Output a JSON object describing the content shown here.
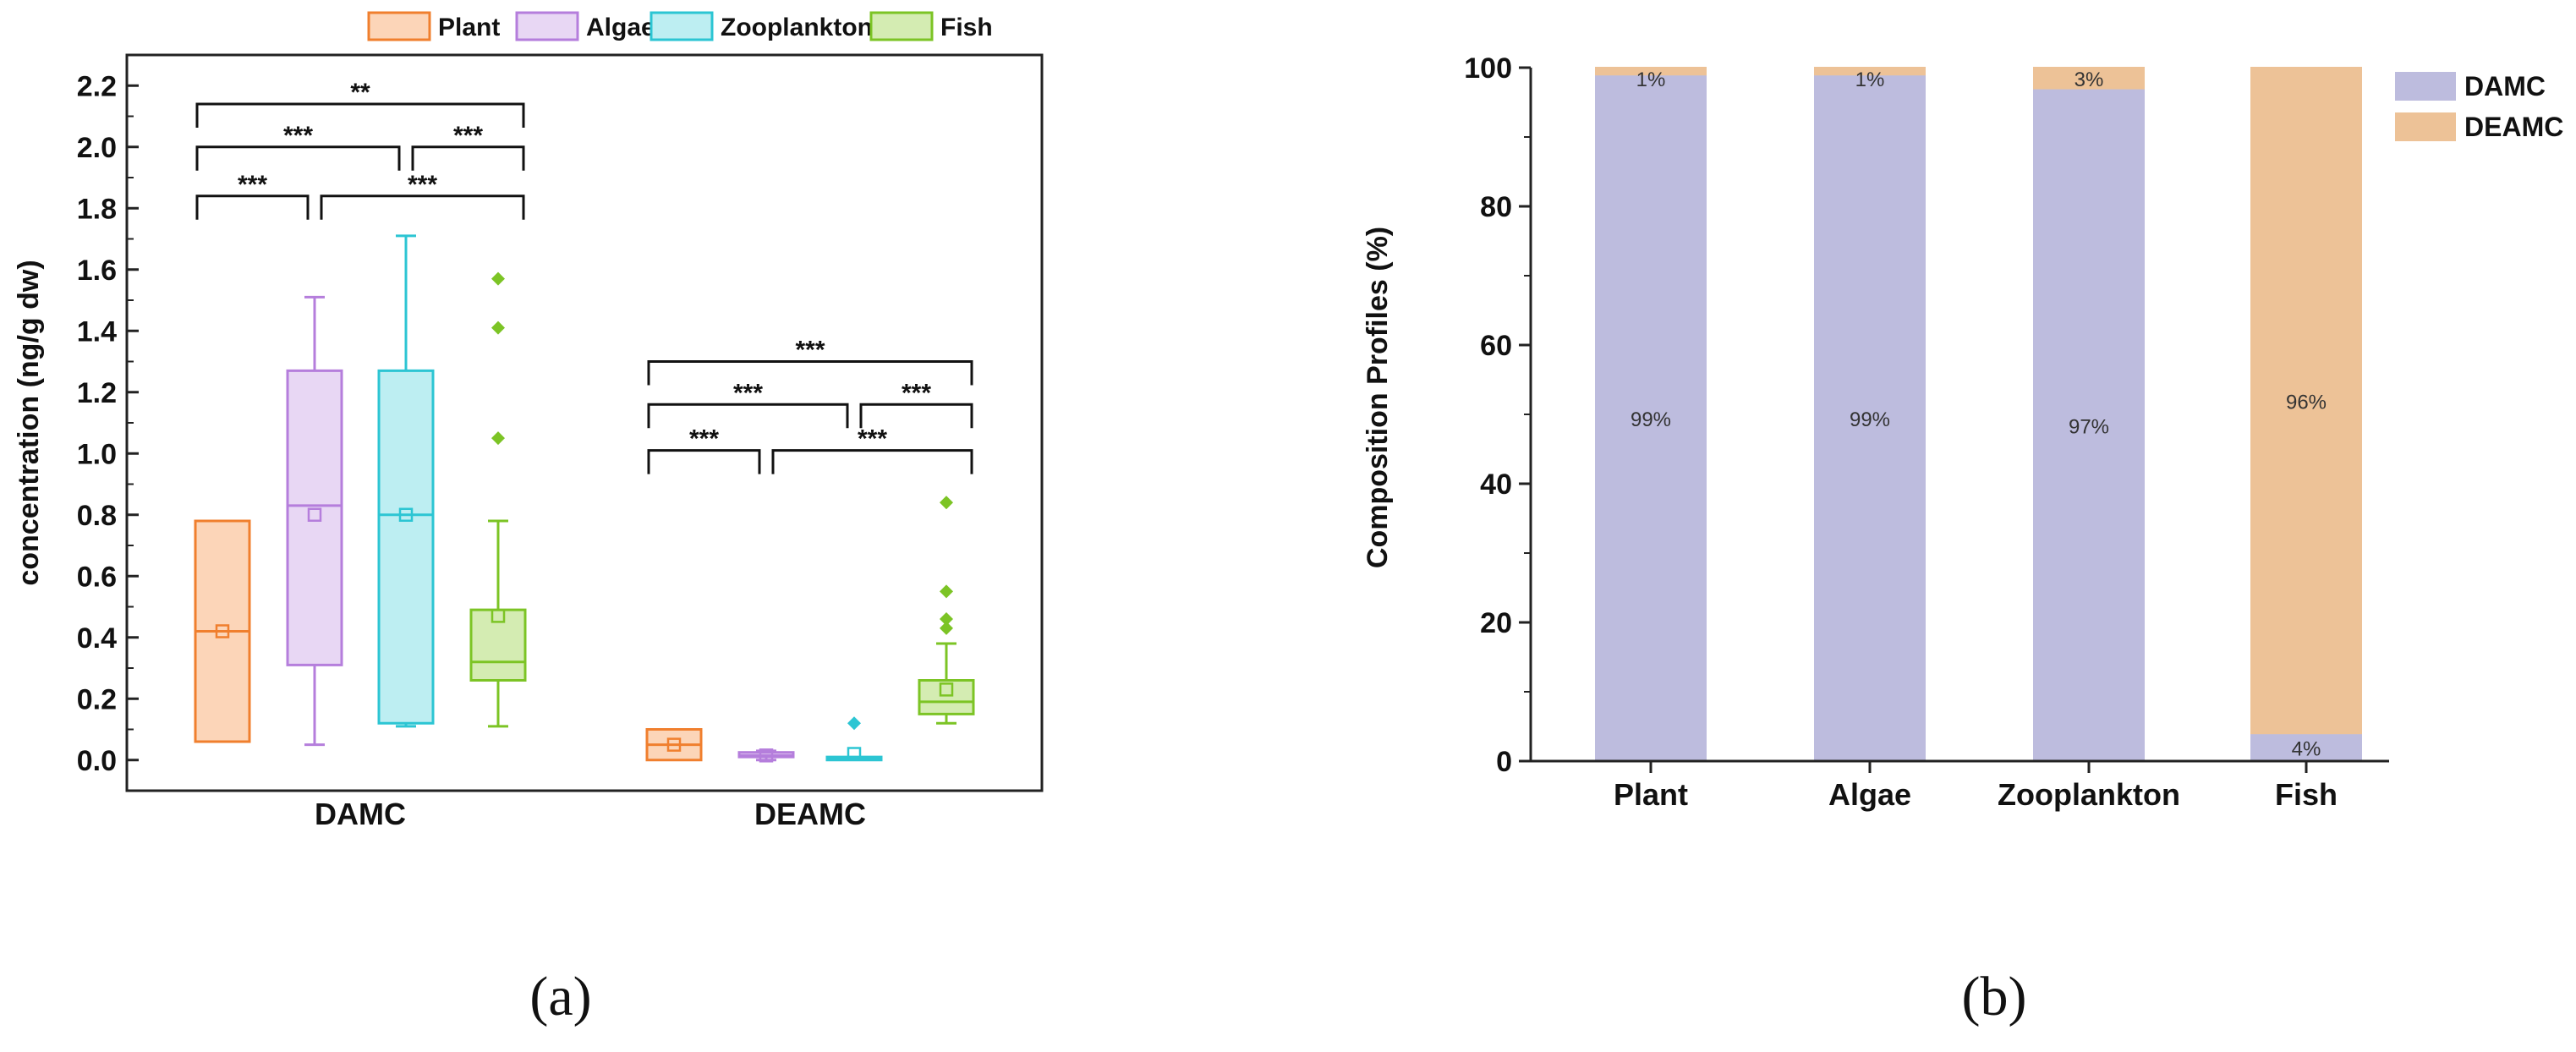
{
  "panels": {
    "a_label": "(a)",
    "b_label": "(b)"
  },
  "chart_data": [
    {
      "type": "box",
      "title": "",
      "ylabel": "concentration (ng/g dw)",
      "ylim": [
        -0.1,
        2.3
      ],
      "yticks": [
        "0.0",
        "0.2",
        "0.4",
        "0.6",
        "0.8",
        "1.0",
        "1.2",
        "1.4",
        "1.6",
        "1.8",
        "2.0",
        "2.2"
      ],
      "groups": [
        "DAMC",
        "DEAMC"
      ],
      "legend": [
        {
          "name": "Plant",
          "color": "#F07F2E",
          "fill": "#FCD5B8"
        },
        {
          "name": "Algae",
          "color": "#B57EDC",
          "fill": "#E8D7F4"
        },
        {
          "name": "Zooplankton",
          "color": "#2CC5D3",
          "fill": "#BDEEF2"
        },
        {
          "name": "Fish",
          "color": "#7CC425",
          "fill": "#D4ECB2"
        }
      ],
      "boxes": [
        {
          "group": "DAMC",
          "series": "Plant",
          "min": 0.06,
          "q1": 0.06,
          "median": 0.42,
          "q3": 0.78,
          "max": 0.78,
          "mean": 0.42,
          "outliers": []
        },
        {
          "group": "DAMC",
          "series": "Algae",
          "min": 0.05,
          "q1": 0.31,
          "median": 0.83,
          "q3": 1.27,
          "max": 1.51,
          "mean": 0.8,
          "outliers": []
        },
        {
          "group": "DAMC",
          "series": "Zooplankton",
          "min": 0.11,
          "q1": 0.12,
          "median": 0.8,
          "q3": 1.27,
          "max": 1.71,
          "mean": 0.8,
          "outliers": []
        },
        {
          "group": "DAMC",
          "series": "Fish",
          "min": 0.11,
          "q1": 0.26,
          "median": 0.32,
          "q3": 0.49,
          "max": 0.78,
          "mean": 0.47,
          "outliers": [
            1.05,
            1.41,
            1.57
          ]
        },
        {
          "group": "DEAMC",
          "series": "Plant",
          "min": 0.0,
          "q1": 0.0,
          "median": 0.05,
          "q3": 0.1,
          "max": 0.1,
          "mean": 0.05,
          "outliers": []
        },
        {
          "group": "DEAMC",
          "series": "Algae",
          "min": 0.0,
          "q1": 0.01,
          "median": 0.015,
          "q3": 0.025,
          "max": 0.03,
          "mean": 0.015,
          "outliers": []
        },
        {
          "group": "DEAMC",
          "series": "Zooplankton",
          "min": 0.0,
          "q1": 0.0,
          "median": 0.005,
          "q3": 0.01,
          "max": 0.01,
          "mean": 0.02,
          "outliers": [
            0.12
          ]
        },
        {
          "group": "DEAMC",
          "series": "Fish",
          "min": 0.12,
          "q1": 0.15,
          "median": 0.19,
          "q3": 0.26,
          "max": 0.38,
          "mean": 0.23,
          "outliers": [
            0.43,
            0.46,
            0.55,
            0.84
          ]
        }
      ],
      "significance": [
        {
          "group": "DAMC",
          "from": "Plant",
          "to": "Algae",
          "label": "***",
          "level": 1.84
        },
        {
          "group": "DAMC",
          "from": "Algae",
          "to": "Fish",
          "label": "***",
          "level": 1.84
        },
        {
          "group": "DAMC",
          "from": "Plant",
          "to": "Zooplankton",
          "label": "***",
          "level": 2.0
        },
        {
          "group": "DAMC",
          "from": "Zooplankton",
          "to": "Fish",
          "label": "***",
          "level": 2.0
        },
        {
          "group": "DAMC",
          "from": "Plant",
          "to": "Fish",
          "label": "**",
          "level": 2.14
        },
        {
          "group": "DEAMC",
          "from": "Plant",
          "to": "Algae",
          "label": "***",
          "level": 1.01
        },
        {
          "group": "DEAMC",
          "from": "Algae",
          "to": "Fish",
          "label": "***",
          "level": 1.01
        },
        {
          "group": "DEAMC",
          "from": "Plant",
          "to": "Zooplankton",
          "label": "***",
          "level": 1.16
        },
        {
          "group": "DEAMC",
          "from": "Zooplankton",
          "to": "Fish",
          "label": "***",
          "level": 1.16
        },
        {
          "group": "DEAMC",
          "from": "Plant",
          "to": "Fish",
          "label": "***",
          "level": 1.3
        }
      ]
    },
    {
      "type": "stacked_bar",
      "title": "",
      "ylabel": "Composition Profiles (%)",
      "ylim": [
        0,
        100
      ],
      "yticks": [
        "0",
        "20",
        "40",
        "60",
        "80",
        "100"
      ],
      "categories": [
        "Plant",
        "Algae",
        "Zooplankton",
        "Fish"
      ],
      "series": [
        {
          "name": "DAMC",
          "color": "#BDBCDE",
          "values": [
            99,
            99,
            97,
            4
          ],
          "labels": [
            "99%",
            "99%",
            "97%",
            "4%"
          ]
        },
        {
          "name": "DEAMC",
          "color": "#EDC297",
          "values": [
            1,
            1,
            3,
            96
          ],
          "labels": [
            "1%",
            "1%",
            "3%",
            "96%"
          ]
        }
      ],
      "legend_position": "top-right"
    }
  ]
}
